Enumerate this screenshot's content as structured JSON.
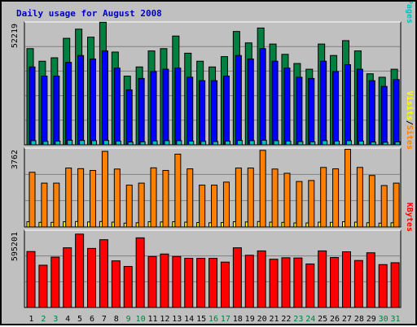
{
  "chart_data": [
    {
      "type": "bar",
      "title": "Daily usage for August 2008",
      "categories": [
        "1",
        "2",
        "3",
        "4",
        "5",
        "6",
        "7",
        "8",
        "9",
        "10",
        "11",
        "12",
        "13",
        "14",
        "15",
        "16",
        "17",
        "18",
        "19",
        "20",
        "21",
        "22",
        "23",
        "24",
        "25",
        "26",
        "27",
        "28",
        "29",
        "30",
        "31"
      ],
      "weekend_days": [
        "2",
        "3",
        "9",
        "10",
        "16",
        "17",
        "23",
        "24",
        "30",
        "31"
      ],
      "ylim": [
        0,
        52219
      ],
      "ymax_label": "52219",
      "y_axis_legend": [
        "Pages",
        "/",
        "Files",
        "/",
        "Hits"
      ],
      "series": [
        {
          "name": "Hits",
          "color": "#008040",
          "values": [
            42000,
            36500,
            38000,
            46500,
            50500,
            47000,
            53500,
            40500,
            30000,
            34000,
            41000,
            42000,
            47500,
            40000,
            36500,
            34000,
            38500,
            49500,
            44500,
            51000,
            44000,
            39500,
            35500,
            33000,
            44000,
            39000,
            45500,
            41000,
            31000,
            29500,
            33000
          ]
        },
        {
          "name": "Files",
          "color": "#0000ff",
          "values": [
            34000,
            30000,
            30000,
            36000,
            39000,
            37500,
            41000,
            33500,
            24000,
            29000,
            32000,
            33000,
            33500,
            29500,
            28000,
            28000,
            30000,
            39000,
            37500,
            42000,
            36500,
            33500,
            29500,
            29000,
            36500,
            32000,
            35000,
            33000,
            28000,
            25500,
            28500
          ]
        },
        {
          "name": "Pages",
          "color": "#00c0c0",
          "values": [
            1800,
            1500,
            1600,
            2000,
            1900,
            1800,
            1900,
            1600,
            1200,
            1300,
            1700,
            1800,
            1800,
            1600,
            1500,
            1400,
            1600,
            1900,
            1800,
            2000,
            1800,
            1600,
            1400,
            1300,
            1800,
            1600,
            1800,
            1600,
            1200,
            1100,
            1300
          ]
        }
      ]
    },
    {
      "type": "bar",
      "ylim": [
        0,
        3762
      ],
      "ymax_label": "3762",
      "y_axis_legend": [
        "Sites",
        "/",
        "Visits"
      ],
      "series": [
        {
          "name": "Visits",
          "color": "#ff8000",
          "values": [
            2720,
            2180,
            2180,
            2930,
            2900,
            2810,
            3760,
            2880,
            2080,
            2180,
            2940,
            2810,
            3620,
            2890,
            2080,
            2080,
            2230,
            2930,
            2930,
            3810,
            2880,
            2670,
            2260,
            2310,
            2960,
            2890,
            3860,
            2960,
            2560,
            2060,
            2180
          ]
        },
        {
          "name": "Sites",
          "color": "#ffff00",
          "values": [
            260,
            230,
            230,
            260,
            270,
            250,
            270,
            240,
            190,
            210,
            260,
            250,
            260,
            240,
            220,
            210,
            220,
            260,
            250,
            270,
            240,
            230,
            200,
            200,
            240,
            230,
            260,
            240,
            210,
            190,
            210
          ]
        }
      ]
    },
    {
      "type": "bar",
      "ylim": [
        0,
        595201
      ],
      "ymax_label": "595201",
      "y_axis_legend": [
        "KBytes"
      ],
      "series": [
        {
          "name": "KBytes",
          "color": "#ff0000",
          "values": [
            450000,
            340000,
            405000,
            480000,
            590000,
            475000,
            545000,
            375000,
            330000,
            560000,
            410000,
            430000,
            410000,
            395000,
            395000,
            395000,
            365000,
            480000,
            420000,
            455000,
            388000,
            400000,
            398000,
            350000,
            455000,
            402000,
            448000,
            378000,
            440000,
            345000,
            360000
          ]
        }
      ]
    }
  ]
}
